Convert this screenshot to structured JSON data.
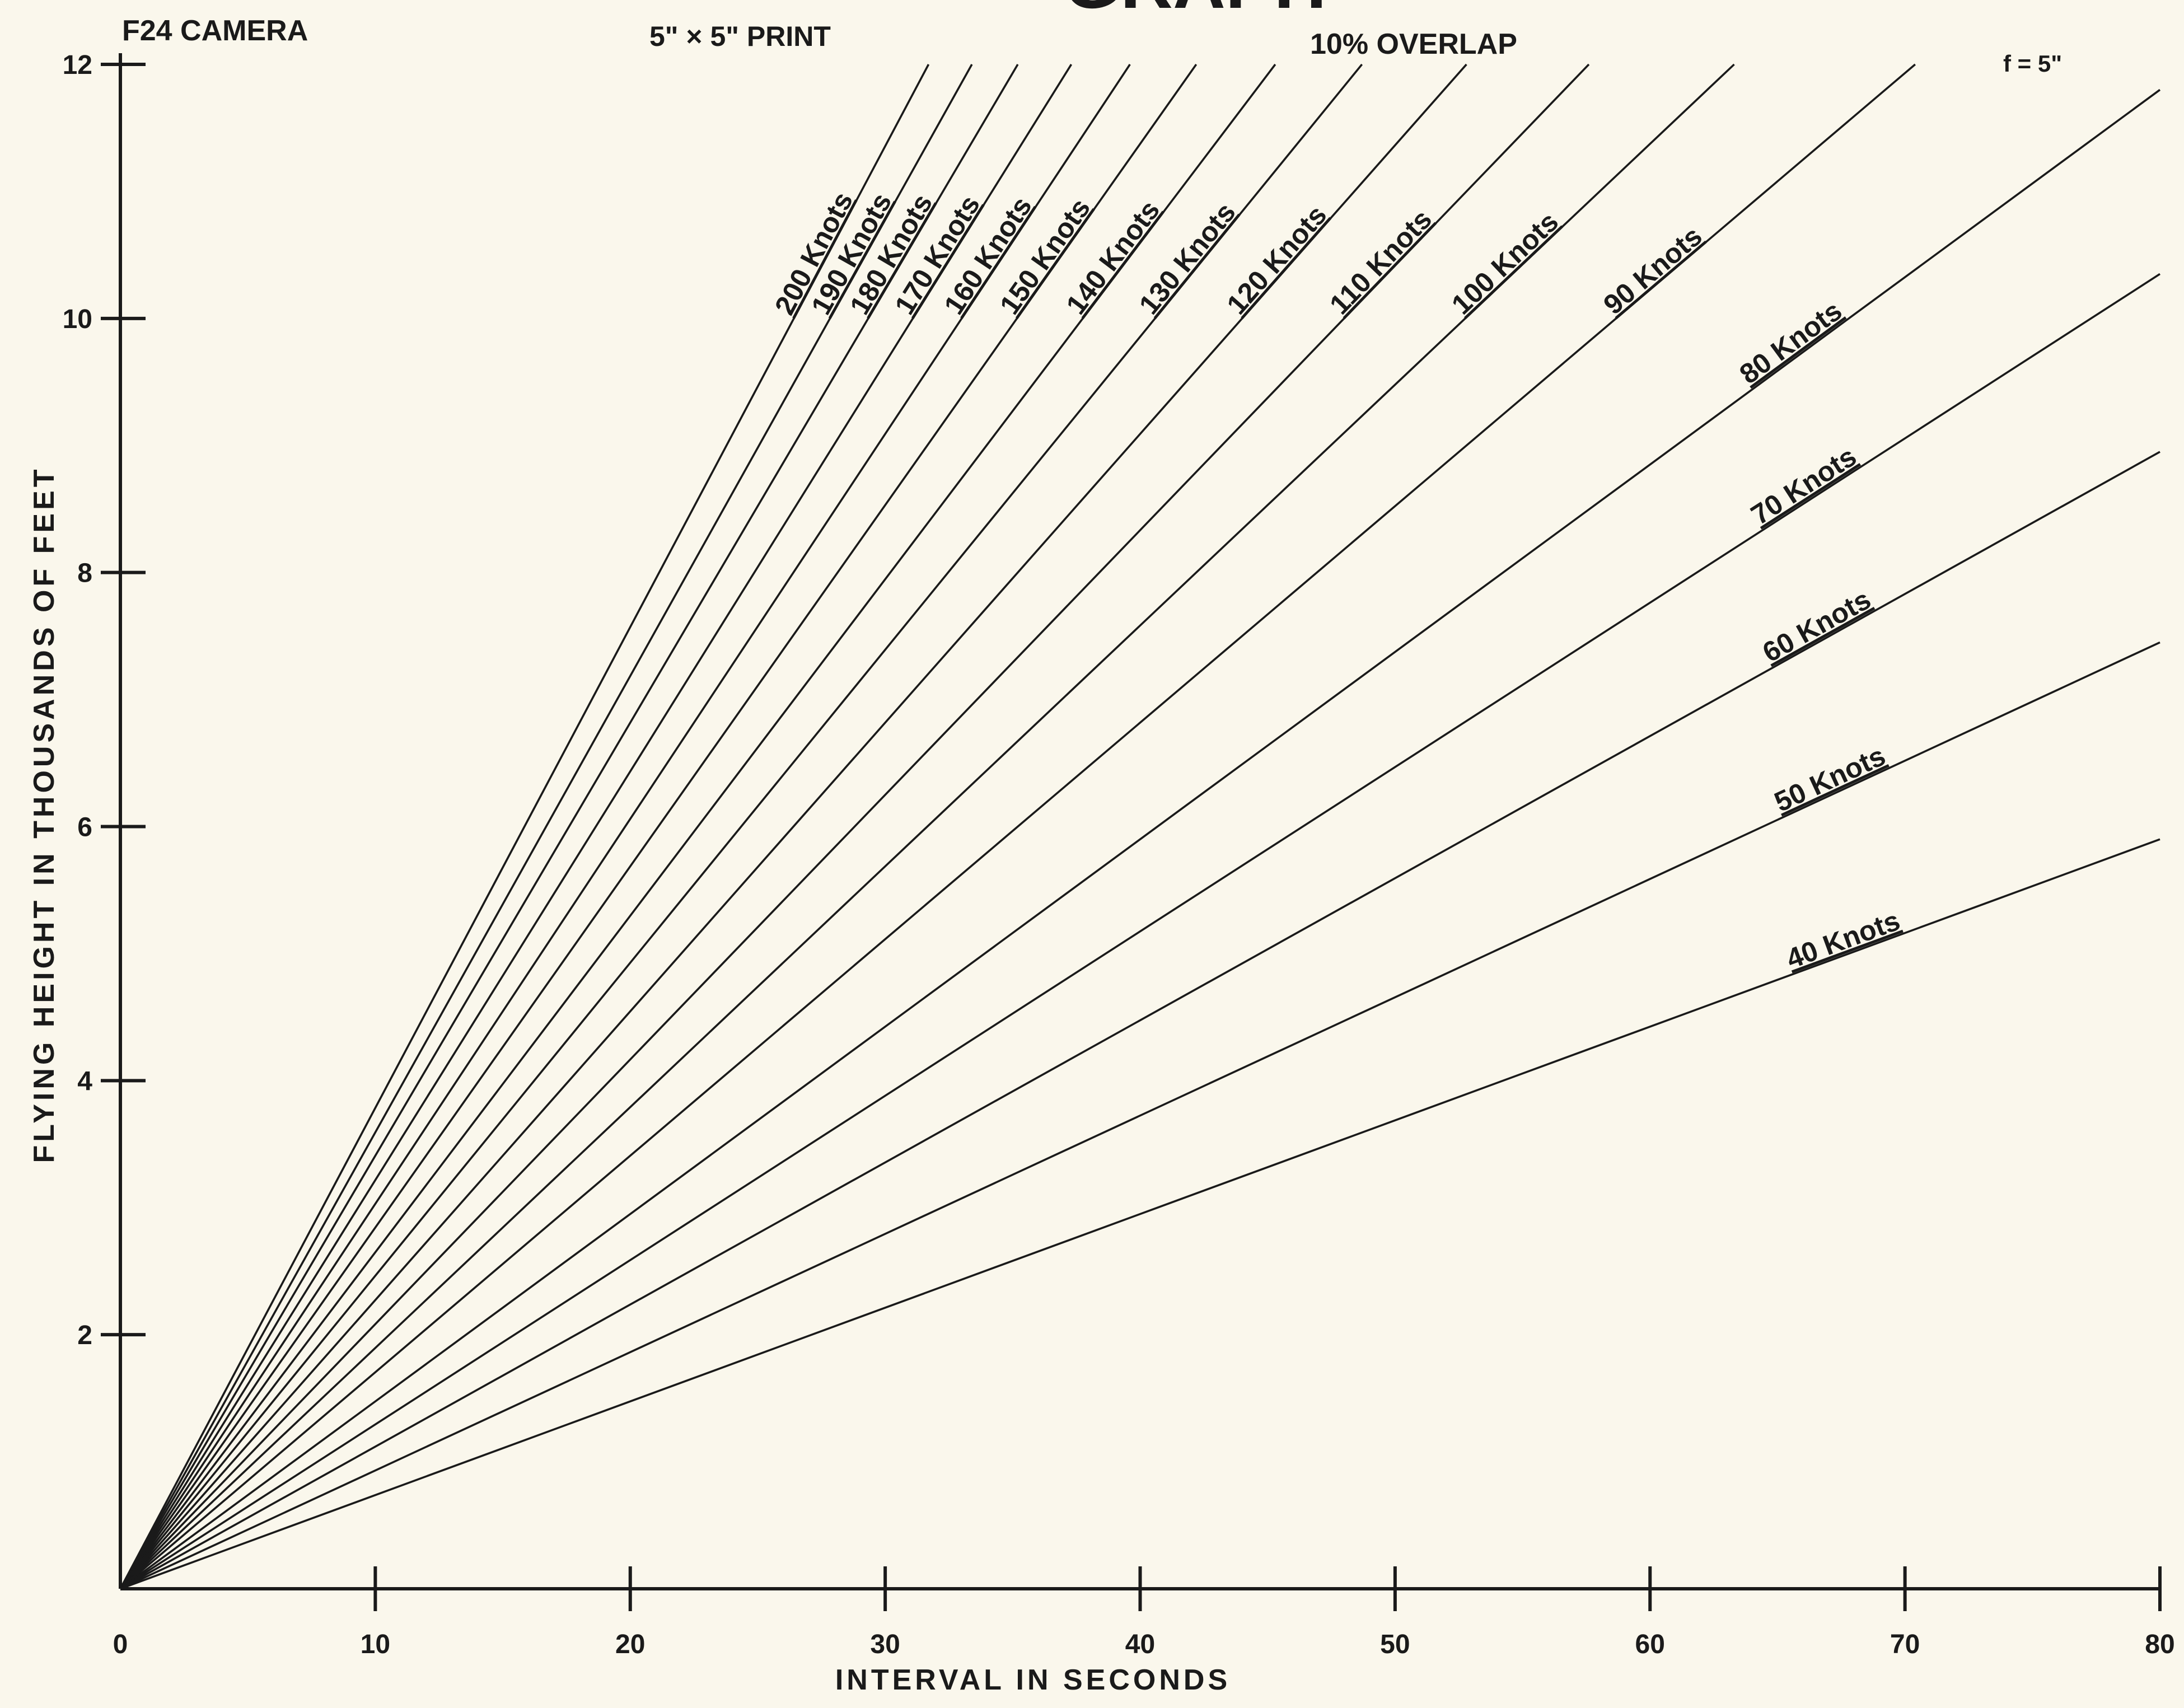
{
  "header": {
    "camera": "F24 CAMERA",
    "print": "5\" × 5\"  PRINT",
    "overlap": "10% OVERLAP",
    "focal": "f = 5\"",
    "title_fragment": "GRAPH"
  },
  "colors": {
    "background": "#faf7ec",
    "ink": "#1a1a1a"
  },
  "chart_data": {
    "type": "line",
    "title": "",
    "xlabel": "INTERVAL IN SECONDS",
    "ylabel": "FLYING HEIGHT IN THOUSANDS OF FEET",
    "xlim": [
      0,
      80
    ],
    "ylim": [
      0,
      12
    ],
    "xticks": [
      0,
      10,
      20,
      30,
      40,
      50,
      60,
      70,
      80
    ],
    "yticks": [
      0,
      2,
      4,
      6,
      8,
      10,
      12
    ],
    "grid": false,
    "legend": "labels on lines",
    "series": [
      {
        "name": "200 Knots",
        "x": [
          0,
          31.7
        ],
        "y": [
          0,
          12
        ]
      },
      {
        "name": "190 Knots",
        "x": [
          0,
          33.4
        ],
        "y": [
          0,
          12
        ]
      },
      {
        "name": "180 Knots",
        "x": [
          0,
          35.2
        ],
        "y": [
          0,
          12
        ]
      },
      {
        "name": "170 Knots",
        "x": [
          0,
          37.3
        ],
        "y": [
          0,
          12
        ]
      },
      {
        "name": "160 Knots",
        "x": [
          0,
          39.6
        ],
        "y": [
          0,
          12
        ]
      },
      {
        "name": "150 Knots",
        "x": [
          0,
          42.2
        ],
        "y": [
          0,
          12
        ]
      },
      {
        "name": "140 Knots",
        "x": [
          0,
          45.3
        ],
        "y": [
          0,
          12
        ]
      },
      {
        "name": "130 Knots",
        "x": [
          0,
          48.7
        ],
        "y": [
          0,
          12
        ]
      },
      {
        "name": "120 Knots",
        "x": [
          0,
          52.8
        ],
        "y": [
          0,
          12
        ]
      },
      {
        "name": "110 Knots",
        "x": [
          0,
          57.6
        ],
        "y": [
          0,
          12
        ]
      },
      {
        "name": "100 Knots",
        "x": [
          0,
          63.3
        ],
        "y": [
          0,
          12
        ]
      },
      {
        "name": "90 Knots",
        "x": [
          0,
          70.4
        ],
        "y": [
          0,
          12
        ]
      },
      {
        "name": "80 Knots",
        "x": [
          0,
          80
        ],
        "y": [
          0,
          11.8
        ]
      },
      {
        "name": "70 Knots",
        "x": [
          0,
          80
        ],
        "y": [
          0,
          10.35
        ]
      },
      {
        "name": "60 Knots",
        "x": [
          0,
          80
        ],
        "y": [
          0,
          8.95
        ]
      },
      {
        "name": "50 Knots",
        "x": [
          0,
          80
        ],
        "y": [
          0,
          7.45
        ]
      },
      {
        "name": "40 Knots",
        "x": [
          0,
          80
        ],
        "y": [
          0,
          5.9
        ]
      }
    ]
  }
}
